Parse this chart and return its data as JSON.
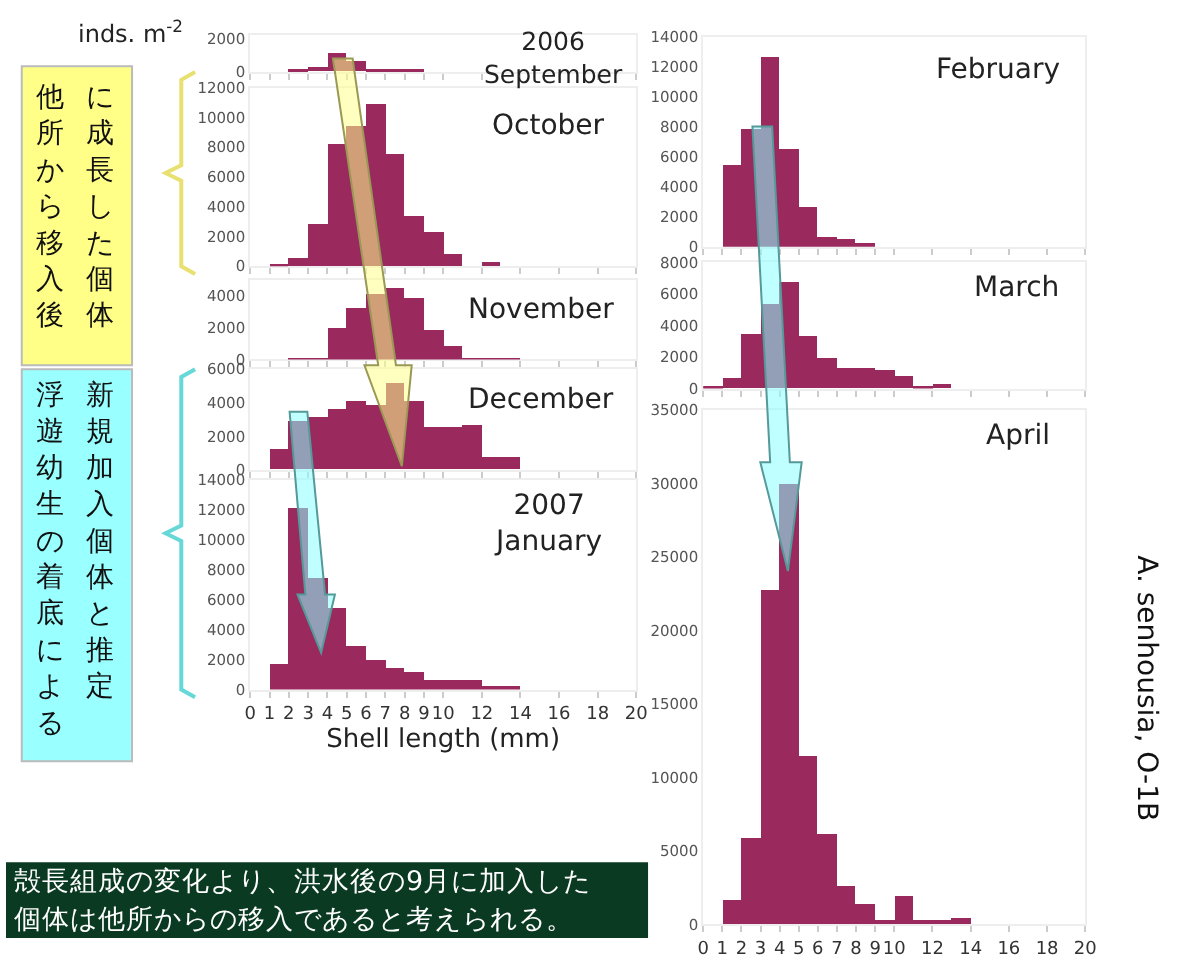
{
  "chart_data": [
    {
      "type": "histogram",
      "bins": [
        2,
        3,
        4,
        5,
        6,
        7,
        8,
        9
      ],
      "values": [
        100,
        300,
        1100,
        600,
        100,
        100,
        100
      ],
      "color": "#9a2a5e",
      "xlim": [
        0,
        20
      ],
      "xticks": [
        0,
        1,
        2,
        3,
        4,
        5,
        6,
        7,
        8,
        9,
        10,
        12,
        14,
        16,
        18,
        20
      ],
      "ylim": [
        0,
        2200
      ],
      "yticks": [
        0,
        2000
      ],
      "tick_labels": "y",
      "ylabel": "inds. m$^{-2}$",
      "annotations": [
        "2006\nSeptember"
      ]
    },
    {
      "type": "histogram",
      "bins": [
        1,
        2,
        3,
        4,
        5,
        6,
        7,
        8,
        9,
        10,
        11,
        12,
        13
      ],
      "values": [
        200,
        600,
        2900,
        8300,
        9500,
        10900,
        7600,
        3400,
        2300,
        900,
        0,
        300
      ],
      "color": "#9a2a5e",
      "xlim": [
        0,
        20
      ],
      "xticks": [
        0,
        1,
        2,
        3,
        4,
        5,
        6,
        7,
        8,
        9,
        10,
        12,
        14,
        16,
        18,
        20
      ],
      "ylim": [
        0,
        12000
      ],
      "yticks": [
        0,
        2000,
        4000,
        6000,
        8000,
        10000,
        12000
      ],
      "tick_labels": "y",
      "annotations": [
        "October"
      ]
    },
    {
      "type": "histogram",
      "bins": [
        2,
        3,
        4,
        5,
        6,
        7,
        8,
        9,
        10,
        11,
        12,
        13,
        14
      ],
      "values": [
        100,
        100,
        2000,
        3300,
        4100,
        4500,
        3900,
        1900,
        900,
        100,
        100,
        100
      ],
      "color": "#9a2a5e",
      "xlim": [
        0,
        20
      ],
      "xticks": [
        0,
        1,
        2,
        3,
        4,
        5,
        6,
        7,
        8,
        9,
        10,
        12,
        14,
        16,
        18,
        20
      ],
      "ylim": [
        0,
        5000
      ],
      "yticks": [
        0,
        2000,
        4000
      ],
      "tick_labels": "y",
      "annotations": [
        "November"
      ]
    },
    {
      "type": "histogram",
      "bins": [
        1,
        2,
        3,
        4,
        5,
        6,
        7,
        8,
        9,
        10,
        11,
        12,
        13,
        14
      ],
      "values": [
        1200,
        2900,
        3200,
        3600,
        4100,
        3900,
        5200,
        4100,
        2600,
        2600,
        2700,
        800,
        800
      ],
      "color": "#9a2a5e",
      "xlim": [
        0,
        20
      ],
      "xticks": [
        0,
        1,
        2,
        3,
        4,
        5,
        6,
        7,
        8,
        9,
        10,
        12,
        14,
        16,
        18,
        20
      ],
      "ylim": [
        0,
        6000
      ],
      "yticks": [
        0,
        2000,
        4000,
        6000
      ],
      "tick_labels": "y",
      "annotations": [
        "December"
      ]
    },
    {
      "type": "histogram",
      "bins": [
        1,
        2,
        3,
        4,
        5,
        6,
        7,
        8,
        9,
        10,
        11,
        12,
        13,
        14
      ],
      "values": [
        1700,
        12100,
        7400,
        5400,
        2900,
        2000,
        1500,
        1200,
        600,
        600,
        700,
        200,
        200
      ],
      "color": "#9a2a5e",
      "xlim": [
        0,
        20
      ],
      "xticks": [
        0,
        1,
        2,
        3,
        4,
        5,
        6,
        7,
        8,
        9,
        10,
        12,
        14,
        16,
        18,
        20
      ],
      "ylim": [
        0,
        14000
      ],
      "yticks": [
        0,
        2000,
        4000,
        6000,
        8000,
        10000,
        12000,
        14000
      ],
      "xlabel": "Shell length (mm)",
      "annotations": [
        "2007\nJanuary"
      ]
    },
    {
      "type": "histogram",
      "bins": [
        1,
        2,
        3,
        4,
        5,
        6,
        7,
        8,
        9
      ],
      "values": [
        5400,
        7800,
        12700,
        6500,
        2600,
        700,
        500,
        300
      ],
      "color": "#9a2a5e",
      "xlim": [
        0,
        20
      ],
      "xticks": [
        0,
        1,
        2,
        3,
        4,
        5,
        6,
        7,
        8,
        9,
        10,
        12,
        14,
        16,
        18,
        20
      ],
      "ylim": [
        0,
        14000
      ],
      "yticks": [
        0,
        2000,
        4000,
        6000,
        8000,
        10000,
        12000,
        14000
      ],
      "tick_labels": "y",
      "annotations": [
        "February"
      ]
    },
    {
      "type": "histogram",
      "bins": [
        0,
        1,
        2,
        3,
        4,
        5,
        6,
        7,
        8,
        9,
        10,
        11,
        12,
        13
      ],
      "values": [
        100,
        600,
        3400,
        5300,
        6700,
        3300,
        1900,
        1300,
        1300,
        1200,
        800,
        100,
        300
      ],
      "color": "#9a2a5e",
      "xlim": [
        0,
        20
      ],
      "xticks": [
        0,
        1,
        2,
        3,
        4,
        5,
        6,
        7,
        8,
        9,
        10,
        12,
        14,
        16,
        18,
        20
      ],
      "ylim": [
        0,
        8000
      ],
      "yticks": [
        0,
        2000,
        4000,
        6000,
        8000
      ],
      "tick_labels": "y",
      "annotations": [
        "March"
      ]
    },
    {
      "type": "histogram",
      "bins": [
        1,
        2,
        3,
        4,
        5,
        6,
        7,
        8,
        9,
        10,
        11,
        12,
        13,
        14
      ],
      "values": [
        1700,
        5900,
        22700,
        30000,
        11400,
        6200,
        2600,
        1400,
        300,
        1900,
        300,
        300,
        500
      ],
      "color": "#9a2a5e",
      "xlim": [
        0,
        20
      ],
      "xticks": [
        0,
        1,
        2,
        3,
        4,
        5,
        6,
        7,
        8,
        9,
        10,
        12,
        14,
        16,
        18,
        20
      ],
      "ylim": [
        0,
        35000
      ],
      "yticks": [
        0,
        5000,
        10000,
        15000,
        20000,
        25000,
        30000,
        35000
      ],
      "annotations": [
        "April"
      ]
    },
    {
      "type": "other",
      "annotations": [
        "他所から移入後",
        "に成長した個体",
        "浮遊幼生の着底による",
        "新規加入個体と推定",
        "殻長組成の変化より、洪水後の9月に加入した",
        "個体は他所からの移入であると考えられる。",
        "A. senhousia, O-1B"
      ]
    }
  ]
}
